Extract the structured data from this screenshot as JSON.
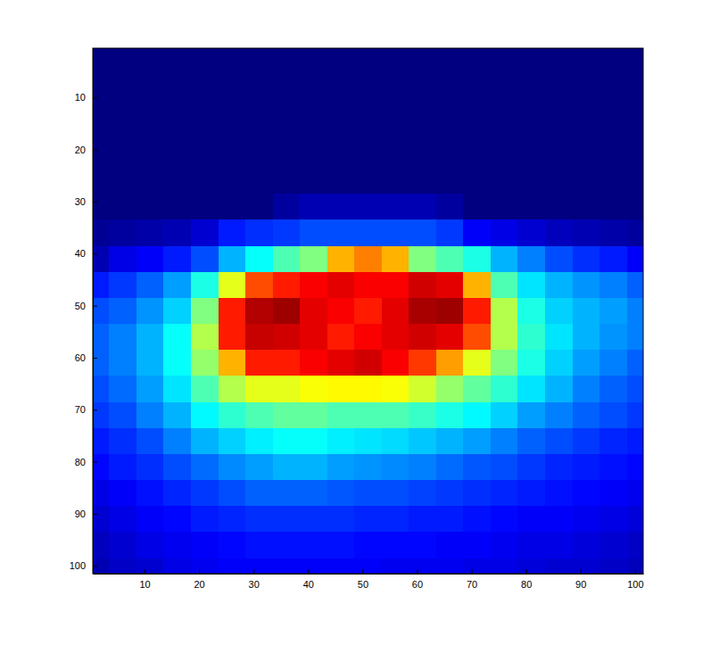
{
  "chart_data": {
    "type": "heatmap",
    "x": [
      1,
      6,
      11,
      16,
      21,
      26,
      31,
      36,
      41,
      46,
      51,
      56,
      61,
      66,
      71,
      76,
      81,
      86,
      91,
      96,
      101
    ],
    "y": [
      1,
      6,
      11,
      16,
      21,
      26,
      31,
      36,
      41,
      46,
      51,
      56,
      61,
      66,
      71,
      76,
      81,
      86,
      91,
      96,
      101
    ],
    "cells": [
      [
        0,
        0,
        0,
        0,
        0,
        0,
        0,
        0,
        0,
        0,
        0,
        0,
        0,
        0,
        0,
        0,
        0,
        0,
        0,
        0,
        0
      ],
      [
        0,
        0,
        0,
        0,
        0,
        0,
        0,
        0,
        0,
        0,
        0,
        0,
        0,
        0,
        0,
        0,
        0,
        0,
        0,
        0,
        0
      ],
      [
        0,
        0,
        0,
        0,
        0,
        0,
        0,
        0,
        0,
        0,
        0,
        0,
        0,
        0,
        0,
        0,
        0,
        0,
        0,
        0,
        0
      ],
      [
        0,
        0,
        0,
        0,
        0,
        0,
        0,
        0,
        0,
        0,
        0,
        0,
        0,
        0,
        0,
        0,
        0,
        0,
        0,
        0,
        0
      ],
      [
        0,
        0,
        0,
        0,
        0,
        0,
        0,
        0,
        0,
        0,
        0,
        0,
        0,
        0,
        0,
        0,
        0,
        0,
        0,
        0,
        0
      ],
      [
        0,
        0,
        0,
        0,
        0,
        0,
        0,
        0,
        0,
        0,
        0,
        0,
        0,
        0,
        0,
        0,
        0,
        0,
        0,
        0,
        0
      ],
      [
        0,
        0,
        0,
        0,
        0,
        0,
        0,
        0.03,
        0.05,
        0.05,
        0.05,
        0.05,
        0.05,
        0.03,
        0,
        0,
        0,
        0,
        0,
        0,
        0
      ],
      [
        0.02,
        0.03,
        0.04,
        0.05,
        0.08,
        0.15,
        0.17,
        0.18,
        0.2,
        0.2,
        0.2,
        0.2,
        0.2,
        0.18,
        0.12,
        0.1,
        0.08,
        0.06,
        0.05,
        0.04,
        0.03
      ],
      [
        0.05,
        0.1,
        0.12,
        0.15,
        0.2,
        0.3,
        0.38,
        0.45,
        0.5,
        0.7,
        0.75,
        0.7,
        0.5,
        0.45,
        0.4,
        0.3,
        0.25,
        0.2,
        0.17,
        0.15,
        0.12
      ],
      [
        0.15,
        0.18,
        0.22,
        0.28,
        0.4,
        0.6,
        0.8,
        0.85,
        0.88,
        0.9,
        0.88,
        0.88,
        0.92,
        0.9,
        0.7,
        0.45,
        0.35,
        0.3,
        0.27,
        0.25,
        0.22
      ],
      [
        0.2,
        0.22,
        0.27,
        0.33,
        0.5,
        0.85,
        0.95,
        0.97,
        0.9,
        0.88,
        0.85,
        0.9,
        0.96,
        0.97,
        0.85,
        0.55,
        0.4,
        0.33,
        0.3,
        0.28,
        0.25
      ],
      [
        0.22,
        0.25,
        0.3,
        0.38,
        0.55,
        0.85,
        0.93,
        0.92,
        0.9,
        0.85,
        0.88,
        0.9,
        0.92,
        0.9,
        0.8,
        0.55,
        0.42,
        0.35,
        0.3,
        0.27,
        0.25
      ],
      [
        0.22,
        0.25,
        0.3,
        0.38,
        0.52,
        0.7,
        0.85,
        0.85,
        0.88,
        0.9,
        0.92,
        0.88,
        0.82,
        0.72,
        0.6,
        0.5,
        0.4,
        0.33,
        0.28,
        0.25,
        0.22
      ],
      [
        0.2,
        0.23,
        0.28,
        0.35,
        0.45,
        0.55,
        0.6,
        0.6,
        0.62,
        0.63,
        0.63,
        0.62,
        0.58,
        0.52,
        0.47,
        0.42,
        0.35,
        0.3,
        0.25,
        0.22,
        0.2
      ],
      [
        0.18,
        0.2,
        0.25,
        0.3,
        0.37,
        0.42,
        0.45,
        0.47,
        0.47,
        0.45,
        0.45,
        0.45,
        0.43,
        0.4,
        0.37,
        0.33,
        0.28,
        0.25,
        0.22,
        0.2,
        0.18
      ],
      [
        0.15,
        0.17,
        0.2,
        0.25,
        0.3,
        0.33,
        0.36,
        0.38,
        0.38,
        0.36,
        0.35,
        0.34,
        0.32,
        0.3,
        0.28,
        0.25,
        0.22,
        0.2,
        0.18,
        0.16,
        0.15
      ],
      [
        0.13,
        0.15,
        0.17,
        0.2,
        0.23,
        0.26,
        0.28,
        0.3,
        0.3,
        0.28,
        0.27,
        0.26,
        0.25,
        0.23,
        0.21,
        0.2,
        0.18,
        0.16,
        0.15,
        0.14,
        0.13
      ],
      [
        0.1,
        0.12,
        0.14,
        0.16,
        0.18,
        0.2,
        0.22,
        0.22,
        0.22,
        0.21,
        0.2,
        0.2,
        0.19,
        0.18,
        0.17,
        0.16,
        0.15,
        0.14,
        0.13,
        0.12,
        0.11
      ],
      [
        0.08,
        0.1,
        0.12,
        0.13,
        0.15,
        0.16,
        0.17,
        0.17,
        0.17,
        0.17,
        0.16,
        0.16,
        0.15,
        0.15,
        0.14,
        0.13,
        0.12,
        0.12,
        0.11,
        0.1,
        0.09
      ],
      [
        0.06,
        0.08,
        0.1,
        0.11,
        0.12,
        0.13,
        0.14,
        0.14,
        0.14,
        0.14,
        0.13,
        0.13,
        0.13,
        0.12,
        0.12,
        0.11,
        0.1,
        0.1,
        0.09,
        0.08,
        0.07
      ],
      [
        0.05,
        0.07,
        0.08,
        0.1,
        0.11,
        0.12,
        0.12,
        0.12,
        0.12,
        0.12,
        0.12,
        0.11,
        0.11,
        0.11,
        0.1,
        0.1,
        0.09,
        0.08,
        0.08,
        0.07,
        0.06
      ]
    ],
    "color_range": [
      0,
      1
    ],
    "xlim": [
      0.5,
      101.5
    ],
    "ylim": [
      0.5,
      101.5
    ],
    "xticks": [
      10,
      20,
      30,
      40,
      50,
      60,
      70,
      80,
      90,
      100
    ],
    "yticks": [
      10,
      20,
      30,
      40,
      50,
      60,
      70,
      80,
      90,
      100
    ]
  }
}
